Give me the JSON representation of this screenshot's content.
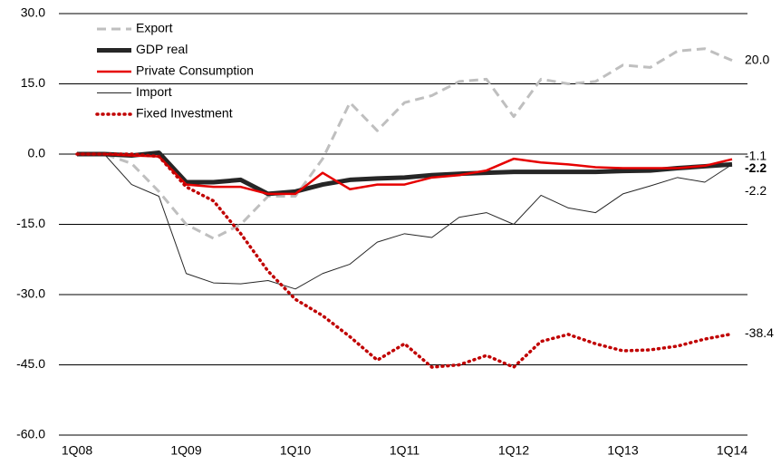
{
  "chart_data": {
    "type": "line",
    "categories": [
      "1Q08",
      null,
      null,
      null,
      "1Q09",
      null,
      null,
      null,
      "1Q10",
      null,
      null,
      null,
      "1Q11",
      null,
      null,
      null,
      "1Q12",
      null,
      null,
      null,
      "1Q13",
      null,
      null,
      null,
      "1Q14"
    ],
    "ylim": [
      -60,
      30
    ],
    "yticks": [
      {
        "value": 30,
        "label": "30.0"
      },
      {
        "value": 15,
        "label": "15.0"
      },
      {
        "value": 0,
        "label": "0.0"
      },
      {
        "value": -15,
        "label": "-15.0"
      },
      {
        "value": -30,
        "label": "-30.0"
      },
      {
        "value": -45,
        "label": "-45.0"
      },
      {
        "value": -60,
        "label": "-60.0"
      }
    ],
    "grid": true,
    "legend": "top-left",
    "series": [
      {
        "name": "Export",
        "color": "#bfbfbf",
        "dash": "dashed",
        "values": [
          0,
          0,
          -2,
          -8,
          -15,
          -18,
          -15,
          -9,
          -9,
          -1,
          11,
          5,
          11,
          12.5,
          15.5,
          16,
          8,
          16,
          15,
          15.5,
          19,
          18.5,
          22,
          22.5,
          20
        ],
        "value_labels": [
          null,
          null,
          null,
          null,
          null,
          null,
          null,
          null,
          null,
          null,
          null,
          null,
          null,
          null,
          null,
          null,
          null,
          null,
          null,
          null,
          null,
          null,
          null,
          null,
          "20.0"
        ]
      },
      {
        "name": "GDP real",
        "color": "#262626",
        "dash": "solid",
        "bold_label": true,
        "values": [
          0,
          0,
          -0.3,
          0.3,
          -6,
          -6,
          -5.5,
          -8.5,
          -8,
          -6.5,
          -5.5,
          -5.2,
          -5,
          -4.5,
          -4.2,
          -4,
          -3.8,
          -3.8,
          -3.8,
          -3.8,
          -3.6,
          -3.5,
          -3,
          -2.6,
          -2.2
        ],
        "value_labels": [
          null,
          null,
          null,
          null,
          null,
          null,
          null,
          null,
          null,
          null,
          null,
          null,
          null,
          null,
          null,
          null,
          null,
          null,
          null,
          null,
          null,
          null,
          null,
          null,
          "-2.2"
        ]
      },
      {
        "name": "Private Consumption",
        "color": "#e60000",
        "dash": "solid",
        "values": [
          0,
          0,
          -0.3,
          -0.5,
          -6.5,
          -7,
          -7,
          -8.5,
          -8.5,
          -4,
          -7.5,
          -6.5,
          -6.5,
          -5,
          -4.5,
          -3.5,
          -1,
          -1.8,
          -2.2,
          -2.8,
          -3,
          -3,
          -3,
          -2.5,
          -1.1
        ],
        "value_labels": [
          null,
          null,
          null,
          null,
          null,
          null,
          null,
          null,
          null,
          null,
          null,
          null,
          null,
          null,
          null,
          null,
          null,
          null,
          null,
          null,
          null,
          null,
          null,
          null,
          "-1.1"
        ]
      },
      {
        "name": "Import",
        "color": "#262626",
        "dash": "thin",
        "values": [
          0,
          0,
          -6.5,
          -9,
          -25.5,
          -27.5,
          -27.7,
          -27,
          -28.8,
          -25.5,
          -23.5,
          -18.8,
          -17,
          -17.8,
          -13.5,
          -12.5,
          -15,
          -8.8,
          -11.5,
          -12.5,
          -8.5,
          -6.8,
          -5,
          -6,
          -2.2
        ],
        "value_labels": [
          null,
          null,
          null,
          null,
          null,
          null,
          null,
          null,
          null,
          null,
          null,
          null,
          null,
          null,
          null,
          null,
          null,
          null,
          null,
          null,
          null,
          null,
          null,
          null,
          "-2.2"
        ]
      },
      {
        "name": "Fixed Investment",
        "color": "#c00000",
        "dash": "dotted",
        "values": [
          0,
          0,
          0,
          -0.5,
          -7,
          -10,
          -17,
          -25,
          -31,
          -34.5,
          -39,
          -44,
          -40.5,
          -45.5,
          -45,
          -43,
          -45.5,
          -40,
          -38.5,
          -40.5,
          -42,
          -41.8,
          -41,
          -39.5,
          -38.4
        ],
        "value_labels": [
          null,
          null,
          null,
          null,
          null,
          null,
          null,
          null,
          null,
          null,
          null,
          null,
          null,
          null,
          null,
          null,
          null,
          null,
          null,
          null,
          null,
          null,
          null,
          null,
          "-38.4"
        ]
      }
    ]
  }
}
